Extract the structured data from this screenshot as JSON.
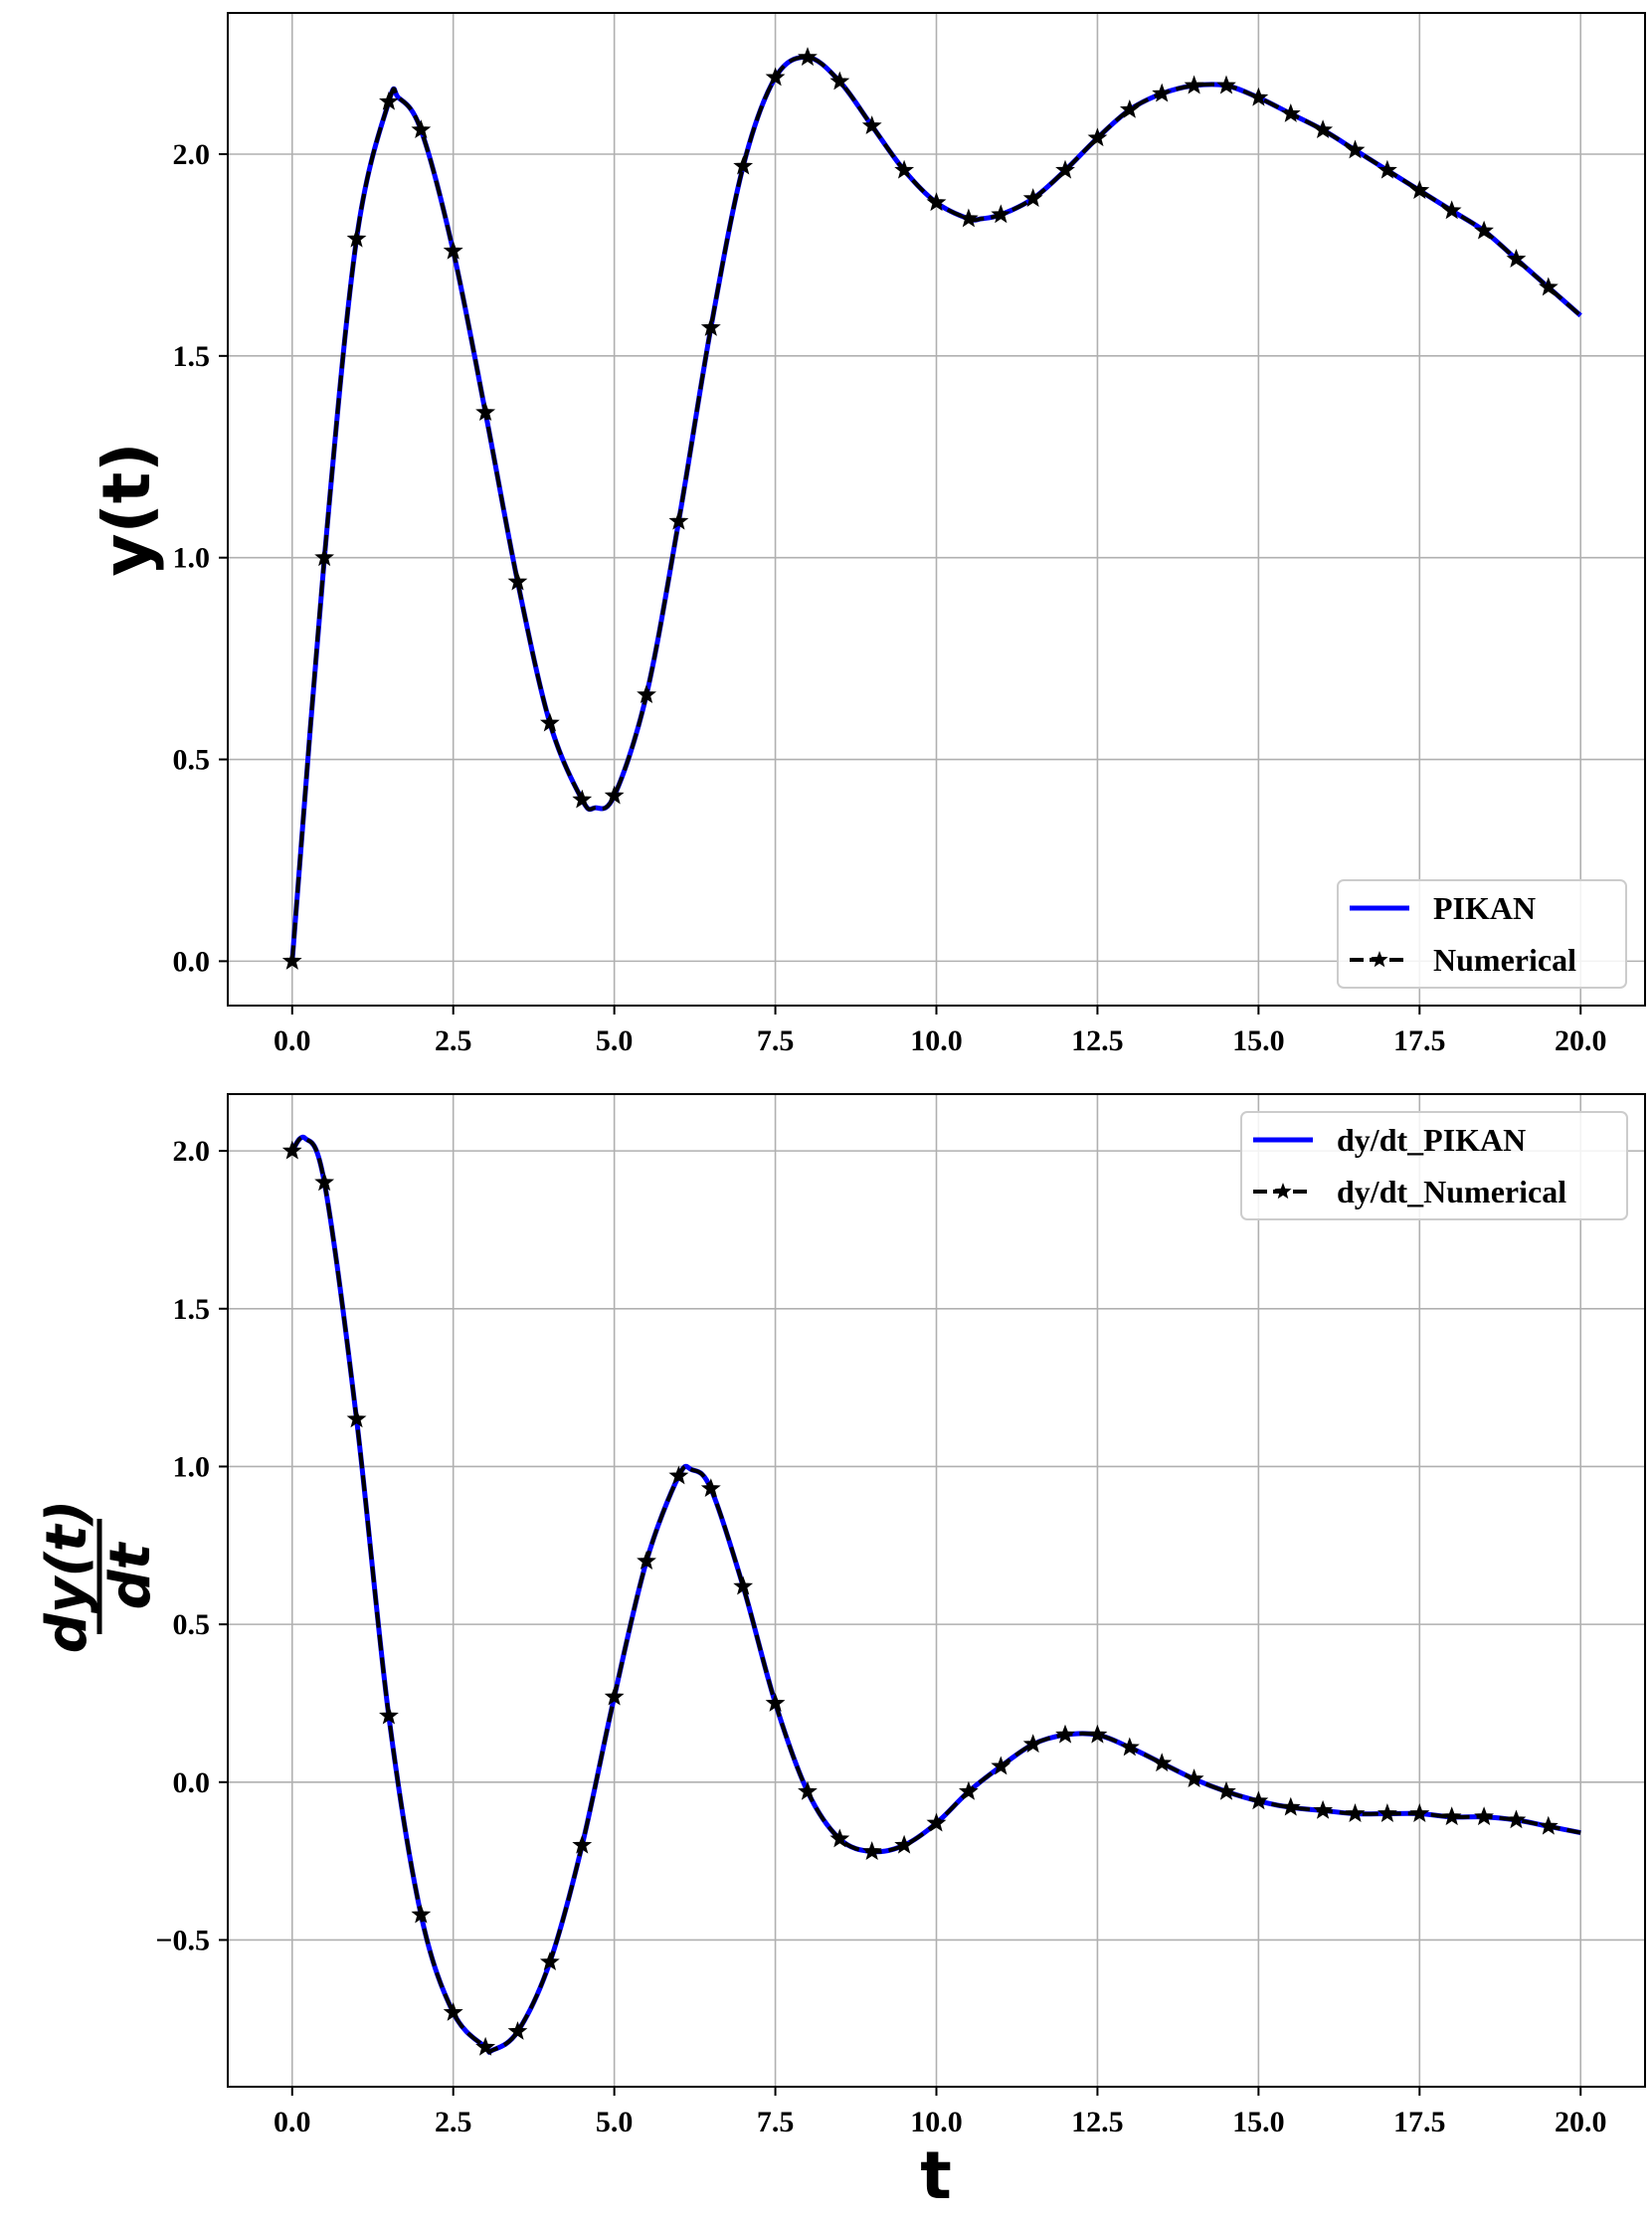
{
  "chart_data": [
    {
      "type": "line",
      "title": "",
      "xlabel": "",
      "ylabel": "y(t)",
      "xlim": [
        -1.0,
        21.0
      ],
      "ylim": [
        -0.11,
        2.35
      ],
      "xticks": [
        0.0,
        2.5,
        5.0,
        7.5,
        10.0,
        12.5,
        15.0,
        17.5,
        20.0
      ],
      "xtick_labels": [
        "0.0",
        "2.5",
        "5.0",
        "7.5",
        "10.0",
        "12.5",
        "15.0",
        "17.5",
        "20.0"
      ],
      "yticks": [
        0.0,
        0.5,
        1.0,
        1.5,
        2.0
      ],
      "ytick_labels": [
        "0.0",
        "0.5",
        "1.0",
        "1.5",
        "2.0"
      ],
      "grid": true,
      "legend_position": "lower-right",
      "colors": {
        "series_a": "#0000ff",
        "series_b": "#000000"
      },
      "x": [
        0.0,
        0.5,
        1.0,
        1.5,
        1.65,
        2.0,
        2.5,
        3.0,
        3.5,
        4.0,
        4.5,
        4.7,
        5.0,
        5.5,
        6.0,
        6.5,
        7.0,
        7.5,
        8.0,
        8.5,
        9.0,
        9.5,
        10.0,
        10.5,
        10.7,
        11.0,
        11.5,
        12.0,
        12.5,
        13.0,
        13.5,
        14.0,
        14.5,
        15.0,
        15.5,
        16.0,
        16.5,
        17.0,
        17.5,
        18.0,
        18.5,
        19.0,
        19.5,
        20.0
      ],
      "series": [
        {
          "name": "PIKAN",
          "style": "solid",
          "values": [
            0.0,
            1.0,
            1.79,
            2.13,
            2.14,
            2.06,
            1.76,
            1.36,
            0.94,
            0.59,
            0.4,
            0.38,
            0.41,
            0.66,
            1.09,
            1.57,
            1.97,
            2.19,
            2.24,
            2.18,
            2.07,
            1.96,
            1.88,
            1.84,
            1.84,
            1.85,
            1.89,
            1.96,
            2.04,
            2.11,
            2.15,
            2.17,
            2.17,
            2.14,
            2.1,
            2.06,
            2.01,
            1.96,
            1.91,
            1.86,
            1.81,
            1.74,
            1.67,
            1.6
          ]
        },
        {
          "name": "Numerical",
          "style": "dashed-star",
          "marker_x": [
            0.0,
            0.5,
            1.0,
            1.5,
            2.0,
            2.5,
            3.0,
            3.5,
            4.0,
            4.5,
            5.0,
            5.5,
            6.0,
            6.5,
            7.0,
            7.5,
            8.0,
            8.5,
            9.0,
            9.5,
            10.0,
            10.5,
            11.0,
            11.5,
            12.0,
            12.5,
            13.0,
            13.5,
            14.0,
            14.5,
            15.0,
            15.5,
            16.0,
            16.5,
            17.0,
            17.5,
            18.0,
            18.5,
            19.0,
            19.5
          ],
          "values": [
            0.0,
            1.0,
            1.79,
            2.13,
            2.14,
            2.06,
            1.76,
            1.36,
            0.94,
            0.59,
            0.4,
            0.38,
            0.41,
            0.66,
            1.09,
            1.57,
            1.97,
            2.19,
            2.24,
            2.18,
            2.07,
            1.96,
            1.88,
            1.84,
            1.84,
            1.85,
            1.89,
            1.96,
            2.04,
            2.11,
            2.15,
            2.17,
            2.17,
            2.14,
            2.1,
            2.06,
            2.01,
            1.96,
            1.91,
            1.86,
            1.81,
            1.74,
            1.67,
            1.6
          ]
        }
      ]
    },
    {
      "type": "line",
      "title": "",
      "xlabel": "t",
      "ylabel": "dy(t) / dt",
      "xlim": [
        -1.0,
        21.0
      ],
      "ylim": [
        -0.965,
        2.18
      ],
      "xticks": [
        0.0,
        2.5,
        5.0,
        7.5,
        10.0,
        12.5,
        15.0,
        17.5,
        20.0
      ],
      "xtick_labels": [
        "0.0",
        "2.5",
        "5.0",
        "7.5",
        "10.0",
        "12.5",
        "15.0",
        "17.5",
        "20.0"
      ],
      "yticks": [
        -0.5,
        0.0,
        0.5,
        1.0,
        1.5,
        2.0
      ],
      "ytick_labels": [
        "−0.5",
        "0.0",
        "0.5",
        "1.0",
        "1.5",
        "2.0"
      ],
      "grid": true,
      "legend_position": "upper-right",
      "colors": {
        "series_a": "#0000ff",
        "series_b": "#000000"
      },
      "x": [
        0.0,
        0.2,
        0.5,
        1.0,
        1.5,
        2.0,
        2.5,
        3.0,
        3.1,
        3.5,
        4.0,
        4.5,
        5.0,
        5.5,
        6.0,
        6.2,
        6.5,
        7.0,
        7.5,
        8.0,
        8.5,
        9.0,
        9.5,
        10.0,
        10.5,
        11.0,
        11.5,
        12.0,
        12.5,
        13.0,
        13.5,
        14.0,
        14.5,
        15.0,
        15.5,
        16.0,
        16.5,
        17.0,
        17.5,
        18.0,
        18.5,
        19.0,
        19.5,
        20.0
      ],
      "series": [
        {
          "name": "dy/dt_PIKAN",
          "style": "solid",
          "values": [
            2.0,
            2.04,
            1.9,
            1.15,
            0.21,
            -0.42,
            -0.73,
            -0.84,
            -0.85,
            -0.79,
            -0.57,
            -0.2,
            0.27,
            0.7,
            0.97,
            0.99,
            0.93,
            0.62,
            0.25,
            -0.03,
            -0.18,
            -0.22,
            -0.2,
            -0.13,
            -0.03,
            0.05,
            0.12,
            0.15,
            0.15,
            0.11,
            0.06,
            0.01,
            -0.03,
            -0.06,
            -0.08,
            -0.09,
            -0.1,
            -0.1,
            -0.1,
            -0.11,
            -0.11,
            -0.12,
            -0.14,
            -0.16
          ]
        },
        {
          "name": "dy/dt_Numerical",
          "style": "dashed-star",
          "marker_x": [
            0.0,
            0.5,
            1.0,
            1.5,
            2.0,
            2.5,
            3.0,
            3.5,
            4.0,
            4.5,
            5.0,
            5.5,
            6.0,
            6.5,
            7.0,
            7.5,
            8.0,
            8.5,
            9.0,
            9.5,
            10.0,
            10.5,
            11.0,
            11.5,
            12.0,
            12.5,
            13.0,
            13.5,
            14.0,
            14.5,
            15.0,
            15.5,
            16.0,
            16.5,
            17.0,
            17.5,
            18.0,
            18.5,
            19.0,
            19.5
          ],
          "values": [
            2.0,
            2.04,
            1.9,
            1.15,
            0.21,
            -0.42,
            -0.73,
            -0.84,
            -0.85,
            -0.79,
            -0.57,
            -0.2,
            0.27,
            0.7,
            0.97,
            0.99,
            0.93,
            0.62,
            0.25,
            -0.03,
            -0.18,
            -0.22,
            -0.2,
            -0.13,
            -0.03,
            0.05,
            0.12,
            0.15,
            0.15,
            0.11,
            0.06,
            0.01,
            -0.03,
            -0.06,
            -0.08,
            -0.09,
            -0.1,
            -0.1,
            -0.1,
            -0.11,
            -0.11,
            -0.12,
            -0.14,
            -0.16
          ]
        }
      ]
    }
  ]
}
